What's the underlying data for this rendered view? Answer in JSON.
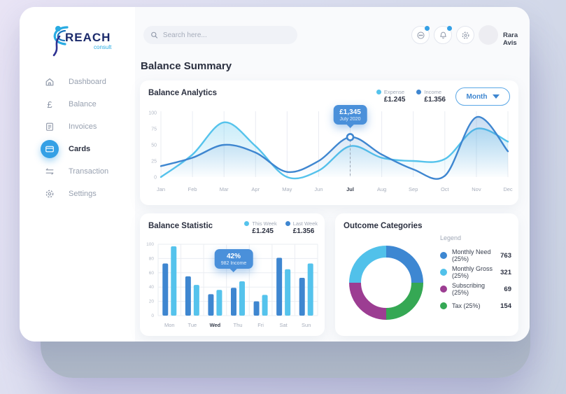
{
  "sidebar": {
    "logo": {
      "title": "REACH",
      "subtitle": "consult"
    },
    "items": [
      {
        "label": "Dashboard",
        "icon": "home-icon",
        "active": false
      },
      {
        "label": "Balance",
        "icon": "pound-icon",
        "active": false
      },
      {
        "label": "Invoices",
        "icon": "invoice-icon",
        "active": false
      },
      {
        "label": "Cards",
        "icon": "card-icon",
        "active": true
      },
      {
        "label": "Transaction",
        "icon": "transfer-icon",
        "active": false
      },
      {
        "label": "Settings",
        "icon": "gear-icon",
        "active": false
      }
    ]
  },
  "header": {
    "search_placeholder": "Search here...",
    "user_name": "Rara Avis"
  },
  "page_title": "Balance Summary",
  "analytics": {
    "title": "Balance Analytics",
    "legend": [
      {
        "label": "Expense",
        "value": "£1.245",
        "color": "#55c3ec"
      },
      {
        "label": "Income",
        "value": "£1.356",
        "color": "#3e86d0"
      }
    ],
    "period_button": "Month",
    "tooltip": {
      "value": "£1,345",
      "label": "July 2020"
    }
  },
  "statistic": {
    "title": "Balance Statistic",
    "legend": [
      {
        "label": "This Week",
        "value": "£1.245",
        "color": "#55c3ec"
      },
      {
        "label": "Last Week",
        "value": "£1.356",
        "color": "#3e86d0"
      }
    ],
    "tooltip": {
      "value": "42%",
      "label": "982 Income"
    }
  },
  "outcome": {
    "title": "Outcome Categories",
    "legend_title": "Legend",
    "items": [
      {
        "label": "Monthly Need (25%)",
        "value": "763",
        "color": "#3d87d2"
      },
      {
        "label": "Monthly Gross (25%)",
        "value": "321",
        "color": "#51c1ea"
      },
      {
        "label": "Subscribing (25%)",
        "value": "69",
        "color": "#9c3d92"
      },
      {
        "label": "Tax (25%)",
        "value": "154",
        "color": "#35a854"
      }
    ]
  },
  "chart_data": [
    {
      "id": "balance-analytics",
      "type": "area",
      "title": "Balance Analytics",
      "x": [
        "Jan",
        "Feb",
        "Mar",
        "Apr",
        "May",
        "Jun",
        "Jul",
        "Aug",
        "Sep",
        "Oct",
        "Nov",
        "Dec"
      ],
      "series": [
        {
          "name": "Expense",
          "color": "#55c3ec",
          "values": [
            0,
            35,
            85,
            48,
            0,
            10,
            48,
            30,
            25,
            28,
            75,
            55
          ]
        },
        {
          "name": "Income",
          "color": "#3e86d0",
          "values": [
            17,
            30,
            50,
            38,
            8,
            25,
            62,
            35,
            12,
            2,
            93,
            40
          ]
        }
      ],
      "ylim": [
        0,
        100
      ],
      "yticks": [
        0,
        25,
        50,
        75,
        100
      ],
      "grid": "vertical",
      "highlight_x": "Jul",
      "annotation": {
        "value": "£1,345",
        "label": "July 2020",
        "series": "Income"
      }
    },
    {
      "id": "balance-statistic",
      "type": "bar",
      "title": "Balance Statistic",
      "categories": [
        "Mon",
        "Tue",
        "Wed",
        "Thu",
        "Fri",
        "Sat",
        "Sun"
      ],
      "series": [
        {
          "name": "This Week",
          "color": "#3e86d0",
          "values": [
            73,
            55,
            30,
            39,
            20,
            81,
            53
          ]
        },
        {
          "name": "Last Week",
          "color": "#55c3ec",
          "values": [
            97,
            43,
            36,
            48,
            29,
            65,
            73
          ]
        }
      ],
      "ylim": [
        0,
        100
      ],
      "yticks": [
        0,
        20,
        40,
        60,
        80,
        100
      ],
      "grid": "both",
      "highlight_category": "Wed",
      "annotation": {
        "value": "42%",
        "label": "982 Income",
        "anchor": "Thu"
      }
    },
    {
      "id": "outcome-categories",
      "type": "pie",
      "title": "Outcome Categories",
      "donut": true,
      "labels": [
        "Monthly Need",
        "Monthly Gross",
        "Subscribing",
        "Tax"
      ],
      "values": [
        25,
        25,
        25,
        25
      ],
      "counts": [
        763,
        321,
        69,
        154
      ],
      "colors": [
        "#3d87d2",
        "#51c1ea",
        "#9c3d92",
        "#35a854"
      ],
      "draw_order": [
        0,
        3,
        2,
        1
      ],
      "start_angle_deg": -90
    }
  ]
}
